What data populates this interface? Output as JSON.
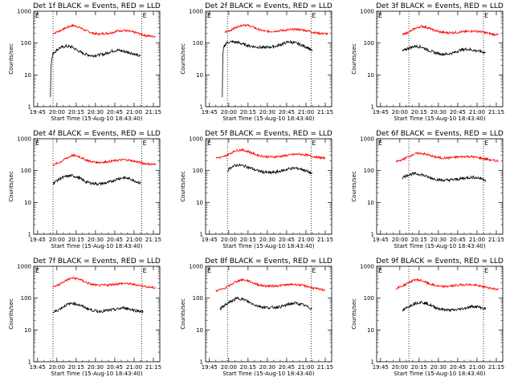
{
  "figure": {
    "xlabel": "Start Time (15-Aug-10 18:43:40)",
    "ylabel": "Counts/sec",
    "x_ticks": [
      "19:45",
      "20:00",
      "20:15",
      "20:30",
      "20:45",
      "21:00",
      "21:15"
    ],
    "y_ticks": [
      "1",
      "10",
      "100",
      "1000"
    ],
    "marker_label": "E",
    "colors": {
      "events": "#000000",
      "lld": "#ff0000",
      "axes": "#000000"
    }
  },
  "chart_data": [
    {
      "type": "line",
      "title": "Det 1f BLACK = Events, RED = LLD",
      "xlim_min": [
        -3,
        95
      ],
      "ylim": [
        1,
        1000
      ],
      "yscale": "log",
      "markers_min": [
        12,
        81
      ],
      "series": [
        {
          "color": "#ff0000",
          "x": [
            12,
            17,
            22,
            27,
            32,
            37,
            42,
            47,
            52,
            57,
            62,
            67,
            72,
            77,
            82,
            87,
            92
          ],
          "y": [
            200,
            240,
            300,
            360,
            320,
            250,
            210,
            190,
            200,
            210,
            240,
            250,
            230,
            210,
            180,
            165,
            160
          ]
        },
        {
          "color": "#000000",
          "x": [
            10,
            10.2,
            11,
            12,
            17,
            22,
            27,
            32,
            37,
            42,
            47,
            52,
            57,
            62,
            67,
            72,
            77,
            80
          ],
          "y": [
            2,
            17,
            30,
            48,
            70,
            80,
            75,
            55,
            45,
            40,
            42,
            45,
            55,
            60,
            55,
            50,
            42,
            38
          ]
        }
      ]
    },
    {
      "type": "line",
      "title": "Det 2f BLACK = Events, RED = LLD",
      "xlim_min": [
        -3,
        95
      ],
      "ylim": [
        1,
        1000
      ],
      "yscale": "log",
      "markers_min": [
        14,
        79
      ],
      "series": [
        {
          "color": "#ff0000",
          "x": [
            12,
            17,
            22,
            27,
            32,
            37,
            42,
            47,
            52,
            57,
            62,
            67,
            72,
            77,
            82,
            87,
            92
          ],
          "y": [
            220,
            260,
            330,
            380,
            340,
            280,
            240,
            230,
            240,
            250,
            260,
            270,
            260,
            240,
            210,
            200,
            195
          ]
        },
        {
          "color": "#000000",
          "x": [
            10,
            10.2,
            11,
            13,
            17,
            22,
            27,
            32,
            37,
            42,
            47,
            52,
            57,
            62,
            67,
            72,
            77,
            80
          ],
          "y": [
            2,
            30,
            70,
            100,
            110,
            105,
            90,
            80,
            75,
            72,
            75,
            80,
            95,
            110,
            100,
            85,
            70,
            55
          ]
        }
      ]
    },
    {
      "type": "line",
      "title": "Det 3f BLACK = Events, RED = LLD",
      "xlim_min": [
        -3,
        95
      ],
      "ylim": [
        1,
        1000
      ],
      "yscale": "log",
      "markers_min": [
        22,
        80
      ],
      "series": [
        {
          "color": "#ff0000",
          "x": [
            17,
            22,
            27,
            32,
            37,
            42,
            47,
            52,
            57,
            62,
            67,
            72,
            77,
            82,
            87,
            92
          ],
          "y": [
            180,
            220,
            290,
            340,
            300,
            250,
            220,
            210,
            215,
            220,
            230,
            240,
            230,
            210,
            190,
            180
          ]
        },
        {
          "color": "#000000",
          "x": [
            17,
            22,
            27,
            32,
            37,
            42,
            47,
            52,
            57,
            62,
            67,
            72,
            77,
            82
          ],
          "y": [
            55,
            70,
            80,
            75,
            60,
            50,
            45,
            45,
            50,
            60,
            65,
            60,
            55,
            50
          ]
        }
      ]
    },
    {
      "type": "line",
      "title": "Det 4f BLACK = Events, RED = LLD",
      "xlim_min": [
        -3,
        95
      ],
      "ylim": [
        1,
        1000
      ],
      "yscale": "log",
      "markers_min": [
        12,
        81
      ],
      "series": [
        {
          "color": "#ff0000",
          "x": [
            12,
            17,
            22,
            27,
            32,
            37,
            42,
            47,
            52,
            57,
            62,
            67,
            72,
            77,
            82,
            87,
            92
          ],
          "y": [
            150,
            180,
            240,
            300,
            280,
            220,
            190,
            180,
            185,
            195,
            210,
            220,
            210,
            190,
            170,
            160,
            155
          ]
        },
        {
          "color": "#000000",
          "x": [
            12,
            17,
            22,
            27,
            32,
            37,
            42,
            47,
            52,
            57,
            62,
            67,
            72,
            77,
            80
          ],
          "y": [
            40,
            55,
            65,
            70,
            60,
            45,
            40,
            38,
            40,
            45,
            55,
            60,
            55,
            45,
            40
          ]
        }
      ]
    },
    {
      "type": "line",
      "title": "Det 5f BLACK = Events, RED = LLD",
      "xlim_min": [
        -3,
        95
      ],
      "ylim": [
        1,
        1000
      ],
      "yscale": "log",
      "markers_min": [
        14,
        79
      ],
      "series": [
        {
          "color": "#ff0000",
          "x": [
            5,
            10,
            15,
            20,
            25,
            30,
            35,
            40,
            45,
            50,
            55,
            60,
            65,
            70,
            75,
            80,
            85,
            90
          ],
          "y": [
            250,
            260,
            330,
            420,
            450,
            400,
            330,
            290,
            270,
            270,
            280,
            300,
            320,
            330,
            310,
            280,
            260,
            240
          ]
        },
        {
          "color": "#000000",
          "x": [
            14,
            17,
            22,
            27,
            32,
            37,
            42,
            47,
            52,
            57,
            62,
            67,
            72,
            77,
            80
          ],
          "y": [
            100,
            130,
            150,
            140,
            120,
            100,
            90,
            85,
            90,
            100,
            115,
            120,
            110,
            90,
            80
          ]
        }
      ]
    },
    {
      "type": "line",
      "title": "Det 6f BLACK = Events, RED = LLD",
      "xlim_min": [
        -3,
        95
      ],
      "ylim": [
        1,
        1000
      ],
      "yscale": "log",
      "markers_min": [
        22,
        80
      ],
      "series": [
        {
          "color": "#ff0000",
          "x": [
            12,
            17,
            22,
            27,
            32,
            37,
            42,
            47,
            52,
            57,
            62,
            67,
            72,
            77,
            82,
            87,
            92
          ],
          "y": [
            190,
            220,
            280,
            340,
            350,
            310,
            270,
            250,
            250,
            260,
            270,
            280,
            270,
            250,
            230,
            210,
            200
          ]
        },
        {
          "color": "#000000",
          "x": [
            17,
            22,
            27,
            32,
            37,
            42,
            47,
            52,
            57,
            62,
            67,
            72,
            77,
            82
          ],
          "y": [
            60,
            75,
            80,
            75,
            62,
            55,
            50,
            50,
            52,
            55,
            60,
            62,
            58,
            50
          ]
        }
      ]
    },
    {
      "type": "line",
      "title": "Det 7f BLACK = Events, RED = LLD",
      "xlim_min": [
        -3,
        95
      ],
      "ylim": [
        1,
        1000
      ],
      "yscale": "log",
      "markers_min": [
        12,
        81
      ],
      "series": [
        {
          "color": "#ff0000",
          "x": [
            12,
            17,
            22,
            27,
            32,
            37,
            42,
            47,
            52,
            57,
            62,
            67,
            72,
            77,
            82,
            87,
            92
          ],
          "y": [
            220,
            270,
            360,
            430,
            400,
            320,
            270,
            250,
            255,
            265,
            280,
            290,
            280,
            260,
            240,
            220,
            210
          ]
        },
        {
          "color": "#000000",
          "x": [
            12,
            17,
            22,
            27,
            32,
            37,
            42,
            47,
            52,
            57,
            62,
            67,
            72,
            77,
            82
          ],
          "y": [
            35,
            45,
            60,
            70,
            62,
            50,
            42,
            38,
            40,
            42,
            45,
            50,
            45,
            40,
            38
          ]
        }
      ]
    },
    {
      "type": "line",
      "title": "Det 8f BLACK = Events, RED = LLD",
      "xlim_min": [
        -3,
        95
      ],
      "ylim": [
        1,
        1000
      ],
      "yscale": "log",
      "markers_min": [
        14,
        79
      ],
      "series": [
        {
          "color": "#ff0000",
          "x": [
            5,
            10,
            15,
            20,
            25,
            30,
            35,
            40,
            45,
            50,
            55,
            60,
            65,
            70,
            75,
            80,
            85,
            90
          ],
          "y": [
            170,
            190,
            240,
            320,
            380,
            350,
            290,
            250,
            240,
            240,
            250,
            260,
            270,
            260,
            240,
            210,
            190,
            180
          ]
        },
        {
          "color": "#000000",
          "x": [
            8,
            12,
            17,
            22,
            27,
            32,
            37,
            42,
            47,
            52,
            57,
            62,
            67,
            72,
            77,
            80
          ],
          "y": [
            45,
            60,
            80,
            100,
            90,
            70,
            58,
            52,
            50,
            52,
            55,
            65,
            70,
            62,
            52,
            45
          ]
        }
      ]
    },
    {
      "type": "line",
      "title": "Det 9f BLACK = Events, RED = LLD",
      "xlim_min": [
        -3,
        95
      ],
      "ylim": [
        1,
        1000
      ],
      "yscale": "log",
      "markers_min": [
        22,
        80
      ],
      "series": [
        {
          "color": "#ff0000",
          "x": [
            12,
            17,
            22,
            27,
            32,
            37,
            42,
            47,
            52,
            57,
            62,
            67,
            72,
            77,
            82,
            87,
            92
          ],
          "y": [
            200,
            240,
            310,
            380,
            360,
            290,
            250,
            230,
            235,
            245,
            260,
            270,
            260,
            240,
            220,
            200,
            190
          ]
        },
        {
          "color": "#000000",
          "x": [
            17,
            22,
            27,
            32,
            37,
            42,
            47,
            52,
            57,
            62,
            67,
            72,
            77,
            82
          ],
          "y": [
            40,
            55,
            70,
            75,
            65,
            52,
            45,
            42,
            42,
            45,
            50,
            55,
            52,
            45
          ]
        }
      ]
    }
  ]
}
